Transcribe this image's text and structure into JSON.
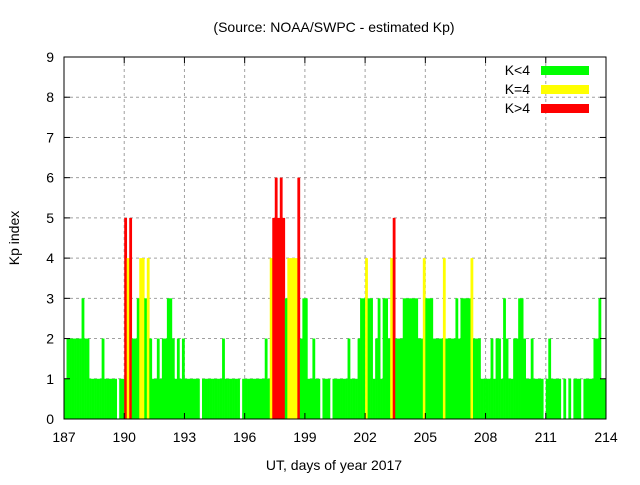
{
  "chart_data": {
    "type": "bar",
    "title": "(Source: NOAA/SWPC - estimated Kp)",
    "xlabel": "UT, days of year 2017",
    "ylabel": "Kp index",
    "xlim": [
      187,
      214
    ],
    "ylim": [
      0,
      9
    ],
    "x_ticks": [
      "187",
      "190",
      "193",
      "196",
      "199",
      "202",
      "205",
      "208",
      "211",
      "214"
    ],
    "y_ticks": [
      "0",
      "1",
      "2",
      "3",
      "4",
      "5",
      "6",
      "7",
      "8",
      "9"
    ],
    "grid": true,
    "legend_position": "top-right",
    "legend": [
      {
        "label": "K<4",
        "color": "#00ff00"
      },
      {
        "label": "K=4",
        "color": "#ffff00"
      },
      {
        "label": "K>4",
        "color": "#ff0000"
      }
    ],
    "bin_hours": 3,
    "start_day": 187,
    "kp_by_day": [
      {
        "day": 187,
        "values": [
          1,
          2,
          2,
          2,
          2,
          2,
          2,
          3
        ]
      },
      {
        "day": 188,
        "values": [
          2,
          2,
          1,
          1,
          1,
          1,
          1,
          2
        ]
      },
      {
        "day": 189,
        "values": [
          1,
          1,
          1,
          1,
          1,
          0,
          1,
          1
        ]
      },
      {
        "day": 190,
        "values": [
          5,
          4,
          5,
          2,
          2,
          3,
          4,
          4
        ]
      },
      {
        "day": 191,
        "values": [
          3,
          4,
          2,
          1,
          1,
          2,
          1,
          2
        ]
      },
      {
        "day": 192,
        "values": [
          2,
          3,
          3,
          2,
          1,
          2,
          1,
          2
        ]
      },
      {
        "day": 193,
        "values": [
          1,
          1,
          1,
          1,
          1,
          1,
          0,
          1
        ]
      },
      {
        "day": 194,
        "values": [
          1,
          1,
          1,
          1,
          1,
          1,
          1,
          2
        ]
      },
      {
        "day": 195,
        "values": [
          1,
          1,
          1,
          1,
          1,
          1,
          0,
          1
        ]
      },
      {
        "day": 196,
        "values": [
          1,
          1,
          1,
          1,
          1,
          1,
          1,
          1
        ]
      },
      {
        "day": 197,
        "values": [
          2,
          1,
          4,
          5,
          6,
          5,
          6,
          5
        ]
      },
      {
        "day": 198,
        "values": [
          3,
          4,
          4,
          4,
          4,
          6,
          2,
          3
        ]
      },
      {
        "day": 199,
        "values": [
          3,
          1,
          1,
          2,
          1,
          1,
          0,
          1
        ]
      },
      {
        "day": 200,
        "values": [
          1,
          1,
          0,
          1,
          1,
          1,
          1,
          1
        ]
      },
      {
        "day": 201,
        "values": [
          1,
          2,
          1,
          1,
          1,
          2,
          3,
          3
        ]
      },
      {
        "day": 202,
        "values": [
          4,
          3,
          3,
          1,
          2,
          3,
          1,
          3
        ]
      },
      {
        "day": 203,
        "values": [
          3,
          2,
          4,
          5,
          2,
          2,
          2,
          3
        ]
      },
      {
        "day": 204,
        "values": [
          3,
          3,
          3,
          3,
          3,
          2,
          2,
          4
        ]
      },
      {
        "day": 205,
        "values": [
          3,
          3,
          3,
          2,
          2,
          2,
          2,
          4
        ]
      },
      {
        "day": 206,
        "values": [
          2,
          2,
          2,
          2,
          3,
          2,
          3,
          3
        ]
      },
      {
        "day": 207,
        "values": [
          3,
          3,
          4,
          2,
          2,
          2,
          1,
          1
        ]
      },
      {
        "day": 208,
        "values": [
          1,
          1,
          2,
          1,
          2,
          2,
          1,
          3
        ]
      },
      {
        "day": 209,
        "values": [
          2,
          1,
          1,
          2,
          2,
          3,
          3,
          2
        ]
      },
      {
        "day": 210,
        "values": [
          1,
          1,
          2,
          1,
          1,
          1,
          1,
          0
        ]
      },
      {
        "day": 211,
        "values": [
          1,
          2,
          1,
          1,
          1,
          1,
          0,
          1
        ]
      },
      {
        "day": 212,
        "values": [
          0,
          1,
          0,
          1,
          1,
          1,
          0,
          1
        ]
      },
      {
        "day": 213,
        "values": [
          1,
          1,
          1,
          2,
          2,
          3,
          1,
          1
        ]
      }
    ]
  }
}
